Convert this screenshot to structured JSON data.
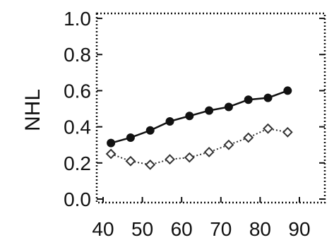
{
  "chart_data": {
    "type": "line",
    "title": "",
    "xlabel": "",
    "ylabel": "NHL",
    "xlim": [
      40,
      90
    ],
    "ylim": [
      0.0,
      1.0
    ],
    "x_ticks": [
      40,
      50,
      60,
      70,
      80,
      90
    ],
    "x_tick_labels": [
      "40",
      "50",
      "60",
      "70",
      "80",
      "90"
    ],
    "y_ticks": [
      0.0,
      0.2,
      0.4,
      0.6,
      0.8,
      1.0
    ],
    "y_tick_labels": [
      "0.0",
      "0.2",
      "0.4",
      "0.6",
      "0.8",
      "1.0"
    ],
    "grid": false,
    "frame": "dotted",
    "x": [
      42,
      47,
      52,
      57,
      62,
      67,
      72,
      77,
      82,
      87
    ],
    "series": [
      {
        "marker": "filled-circle",
        "line_style": "solid",
        "color": "#111111",
        "values": [
          0.31,
          0.34,
          0.38,
          0.43,
          0.46,
          0.49,
          0.51,
          0.55,
          0.56,
          0.6
        ]
      },
      {
        "marker": "open-diamond",
        "line_style": "dotted",
        "color": "#333333",
        "values": [
          0.25,
          0.21,
          0.19,
          0.22,
          0.23,
          0.26,
          0.3,
          0.34,
          0.39,
          0.37
        ]
      }
    ]
  }
}
